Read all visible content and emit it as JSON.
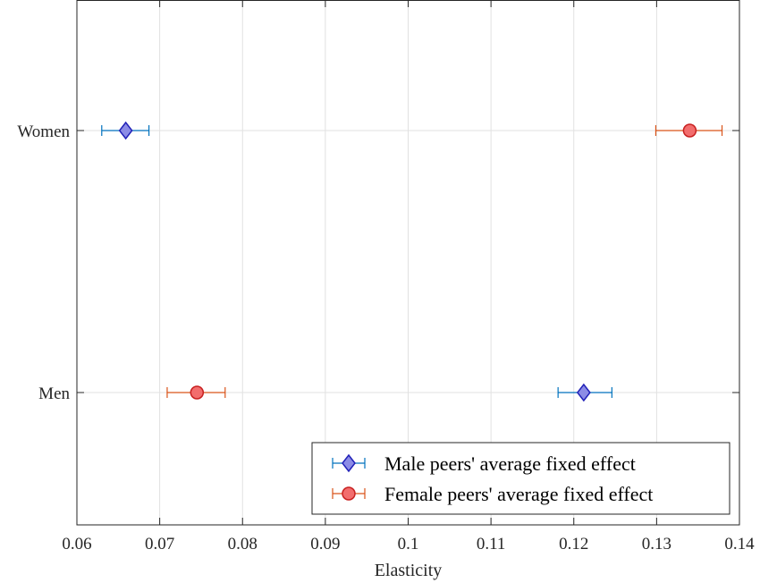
{
  "chart_data": {
    "type": "scatter",
    "orientation": "horizontal",
    "xlabel": "Elasticity",
    "xlim": [
      0.06,
      0.14
    ],
    "xticks": [
      "0.06",
      "0.07",
      "0.08",
      "0.09",
      "0.1",
      "0.11",
      "0.12",
      "0.13",
      "0.14"
    ],
    "categories": [
      "Women",
      "Men"
    ],
    "grid": true,
    "legend_position": "bottom-right",
    "series": [
      {
        "name": "Male peers' average fixed effect",
        "marker": "diamond",
        "color": "#0072BD",
        "fill": "#8C8CE6",
        "points": [
          {
            "category": "Women",
            "value": 0.0659,
            "low": 0.063,
            "high": 0.0687
          },
          {
            "category": "Men",
            "value": 0.1212,
            "low": 0.1181,
            "high": 0.1246
          }
        ]
      },
      {
        "name": "Female peers' average fixed effect",
        "marker": "circle",
        "color": "#D95319",
        "fill": "#F26D6D",
        "points": [
          {
            "category": "Women",
            "value": 0.134,
            "low": 0.1299,
            "high": 0.1379
          },
          {
            "category": "Men",
            "value": 0.0745,
            "low": 0.0709,
            "high": 0.0779
          }
        ]
      }
    ]
  }
}
